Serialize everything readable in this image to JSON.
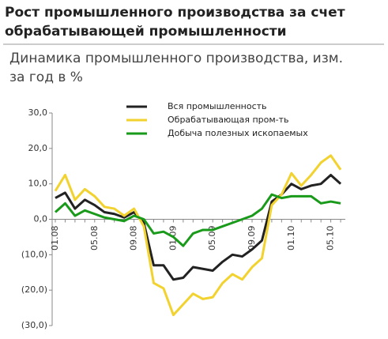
{
  "chart_data": {
    "type": "line",
    "title": [
      "Рост промышленного производства за счет",
      "обрабатывающей промышленности"
    ],
    "subtitle": [
      "Динамика промышленного производства, изм.",
      "за год в %"
    ],
    "categories": [
      "01.08",
      null,
      null,
      null,
      "05.08",
      null,
      null,
      null,
      "09.08",
      null,
      null,
      null,
      "01.09",
      null,
      null,
      null,
      "05.09",
      null,
      null,
      null,
      "09.09",
      null,
      null,
      null,
      "01.10",
      null,
      null,
      null,
      "05.10",
      null
    ],
    "series": [
      {
        "name": "Вся промышленность",
        "color": "#222222",
        "values": [
          6,
          7.5,
          3,
          5.5,
          4,
          2,
          1.5,
          0.5,
          2,
          -1,
          -13,
          -13,
          -17,
          -16.5,
          -13.5,
          -14,
          -14.5,
          -12,
          -10,
          -10.5,
          -8.5,
          -6,
          5,
          7,
          10,
          8.5,
          9.5,
          10,
          12.5,
          10
        ]
      },
      {
        "name": "Обрабатывающая пром-ть",
        "color": "#f2d22e",
        "values": [
          8,
          12.5,
          5.5,
          8.5,
          6.5,
          3.5,
          3,
          1,
          3,
          -2,
          -18,
          -19.5,
          -27,
          -24,
          -21,
          -22.5,
          -22,
          -18,
          -15.5,
          -17,
          -13.5,
          -11,
          4,
          7,
          13,
          9.5,
          12.5,
          16,
          18,
          14
        ]
      },
      {
        "name": "Добыча полезных ископаемых",
        "color": "#1a9a1a",
        "values": [
          2,
          4.5,
          1,
          2.5,
          1.5,
          0.5,
          0,
          -0.5,
          1,
          0,
          -4,
          -3.5,
          -5,
          -7.5,
          -4,
          -3,
          -3,
          -2,
          -1,
          0,
          1,
          3,
          7,
          6,
          6.5,
          6.5,
          6.5,
          4.5,
          5,
          4.5
        ]
      }
    ],
    "ylim": [
      -30,
      30
    ],
    "yticks": [
      {
        "value": 30,
        "label": "30,0"
      },
      {
        "value": 20,
        "label": "20,0"
      },
      {
        "value": 10,
        "label": "10,0"
      },
      {
        "value": 0,
        "label": "0,0"
      },
      {
        "value": -10,
        "label": "(10,0)"
      },
      {
        "value": -20,
        "label": "(20,0)"
      },
      {
        "value": -30,
        "label": "(30,0)"
      }
    ],
    "legend": "top"
  }
}
